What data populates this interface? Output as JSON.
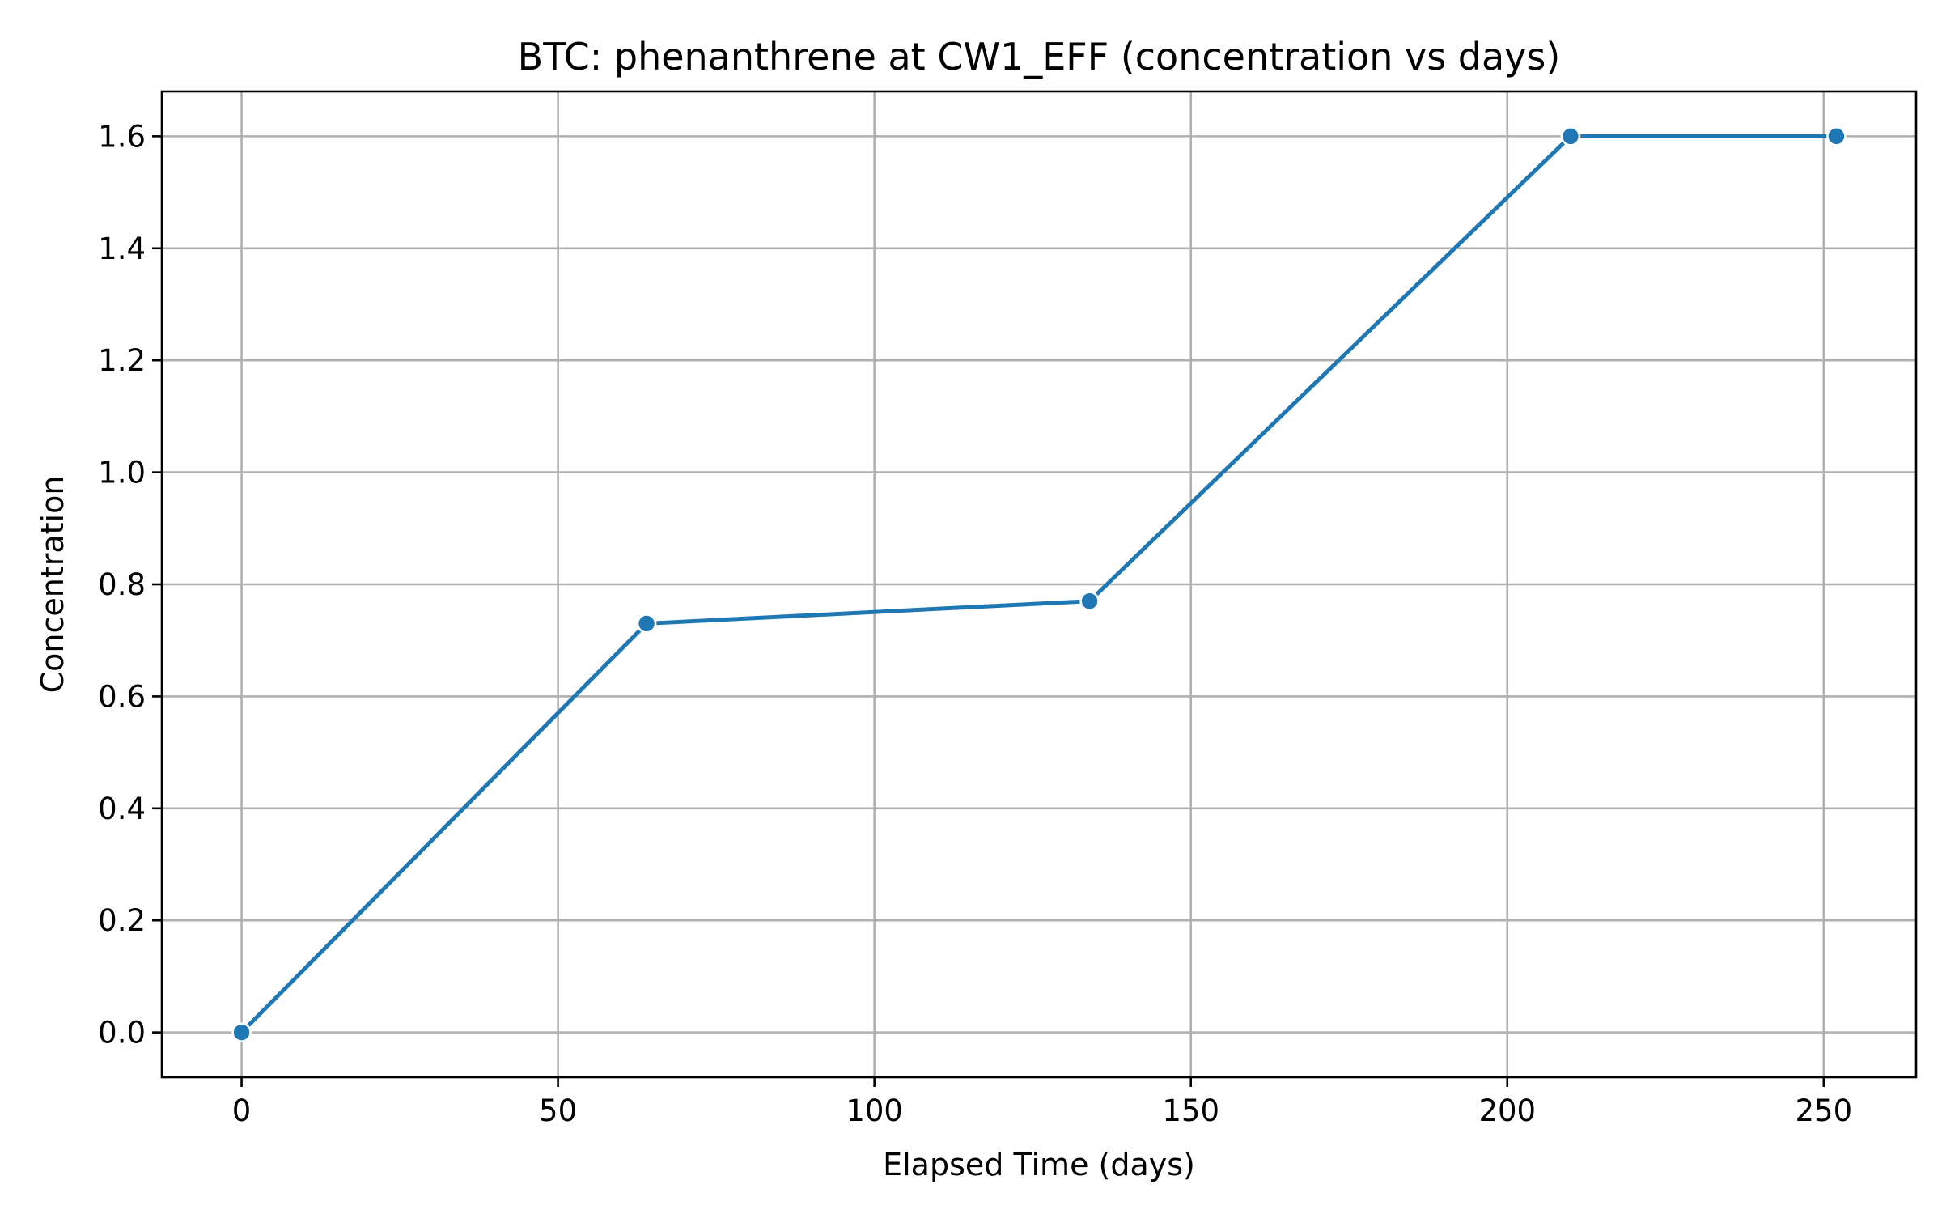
{
  "chart_data": {
    "type": "line",
    "title": "BTC: phenanthrene at CW1_EFF (concentration vs days)",
    "xlabel": "Elapsed Time (days)",
    "ylabel": "Concentration",
    "xlim": [
      -12.6,
      264.6
    ],
    "ylim": [
      -0.08,
      1.68
    ],
    "x_ticks": [
      0,
      50,
      100,
      150,
      200,
      250
    ],
    "y_ticks": [
      0.0,
      0.2,
      0.4,
      0.6,
      0.8,
      1.0,
      1.2,
      1.4,
      1.6
    ],
    "grid": true,
    "series": [
      {
        "color": "#1f77b4",
        "marker": "circle",
        "x": [
          0,
          64,
          134,
          210,
          252
        ],
        "y": [
          0.0,
          0.73,
          0.77,
          1.6,
          1.6
        ]
      }
    ]
  }
}
